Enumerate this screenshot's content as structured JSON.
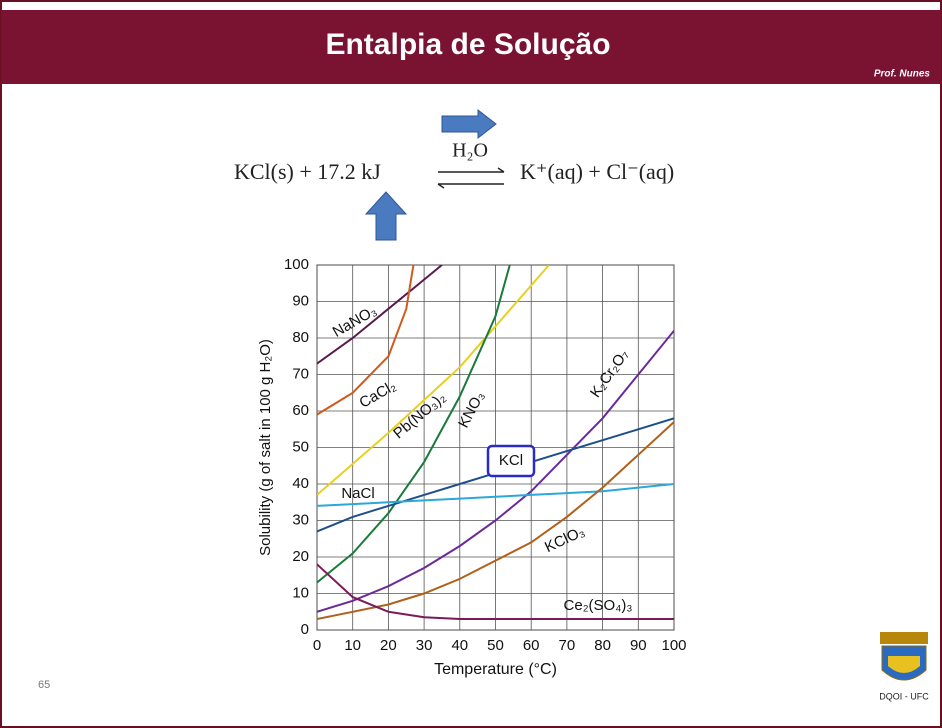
{
  "header": {
    "title": "Entalpia de Solução",
    "author": "Prof. Nunes"
  },
  "equation": {
    "left": "KCl(s) + 17.2 kJ",
    "solvent": "H₂O",
    "right": "K⁺(aq) + Cl⁻(aq)"
  },
  "footer": {
    "page": "65",
    "institution": "DQOI - UFC"
  },
  "chart_data": {
    "type": "line",
    "xlabel": "Temperature (°C)",
    "ylabel": "Solubility (g of salt in 100 g H₂O)",
    "xlim": [
      0,
      100
    ],
    "ylim": [
      0,
      100
    ],
    "xticks": [
      0,
      10,
      20,
      30,
      40,
      50,
      60,
      70,
      80,
      90,
      100
    ],
    "yticks": [
      0,
      10,
      20,
      30,
      40,
      50,
      60,
      70,
      80,
      90,
      100
    ],
    "grid": true,
    "series": [
      {
        "name": "NaNO₃",
        "color": "#5b1a4e",
        "x": [
          0,
          10,
          20,
          30,
          35
        ],
        "values": [
          73,
          80,
          88,
          96,
          100
        ]
      },
      {
        "name": "CaCl₂",
        "color": "#d05a1a",
        "x": [
          0,
          10,
          20,
          25,
          27
        ],
        "values": [
          59,
          65,
          75,
          88,
          100
        ]
      },
      {
        "name": "Pb(NO₃)₂",
        "color": "#e8d020",
        "x": [
          0,
          20,
          40,
          65
        ],
        "values": [
          37,
          54,
          72,
          100
        ]
      },
      {
        "name": "KNO₃",
        "color": "#1a7a3a",
        "x": [
          0,
          10,
          20,
          30,
          40,
          50,
          54
        ],
        "values": [
          13,
          21,
          32,
          46,
          64,
          86,
          100
        ]
      },
      {
        "name": "K₂Cr₂O₇",
        "color": "#6a2a9a",
        "x": [
          0,
          10,
          20,
          30,
          40,
          50,
          60,
          70,
          80,
          90,
          100
        ],
        "values": [
          5,
          8,
          12,
          17,
          23,
          30,
          38,
          48,
          58,
          70,
          82
        ]
      },
      {
        "name": "KCl",
        "color": "#1e4f8c",
        "x": [
          0,
          10,
          20,
          30,
          40,
          50,
          60,
          70,
          80,
          90,
          100
        ],
        "values": [
          27,
          31,
          34,
          37,
          40,
          43,
          46,
          49,
          52,
          55,
          58
        ]
      },
      {
        "name": "NaCl",
        "color": "#2aa8d8",
        "x": [
          0,
          10,
          20,
          30,
          40,
          50,
          60,
          70,
          80,
          90,
          100
        ],
        "values": [
          34,
          34.5,
          35,
          35.5,
          36,
          36.5,
          37,
          37.5,
          38,
          39,
          40
        ]
      },
      {
        "name": "KClO₃",
        "color": "#b0601a",
        "x": [
          0,
          10,
          20,
          30,
          40,
          50,
          60,
          70,
          80,
          90,
          100
        ],
        "values": [
          3,
          5,
          7,
          10,
          14,
          19,
          24,
          31,
          39,
          48,
          57
        ]
      },
      {
        "name": "Ce₂(SO₄)₃",
        "color": "#7a1a5a",
        "x": [
          0,
          10,
          20,
          30,
          40,
          50,
          60,
          70,
          80,
          90,
          100
        ],
        "values": [
          18,
          9,
          5,
          3.5,
          3,
          3,
          3,
          3,
          3,
          3,
          3
        ]
      }
    ]
  }
}
